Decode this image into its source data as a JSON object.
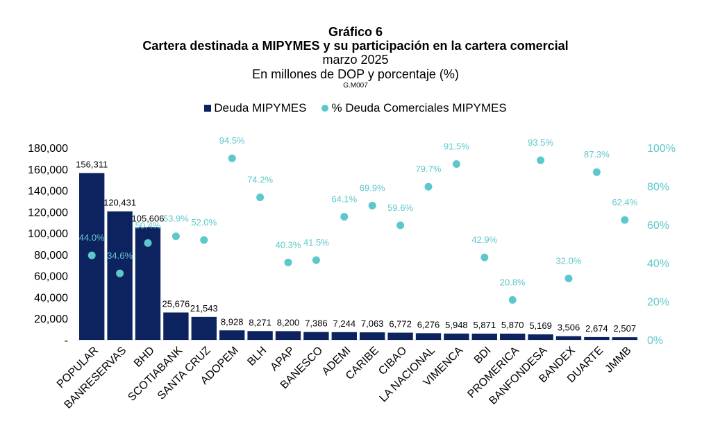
{
  "chart_data": {
    "type": "bar",
    "title": "Gráfico 6",
    "subtitle": "Cartera destinada a MIPYMES y su participación en la cartera comercial",
    "date": "marzo 2025",
    "units": "En millones de DOP y porcentaje (%)",
    "code": "G.M007",
    "categories": [
      "POPULAR",
      "BANRESERVAS",
      "BHD",
      "SCOTIABANK",
      "SANTA CRUZ",
      "ADOPEM",
      "BLH",
      "APAP",
      "BANESCO",
      "ADEMI",
      "CARIBE",
      "CIBAO",
      "LA NACIONAL",
      "VIMENCA",
      "BDI",
      "PROMERICA",
      "BANFONDESA",
      "BANDEX",
      "DUARTE",
      "JMMB"
    ],
    "series": [
      {
        "name": "Deuda MIPYMES",
        "axis": "left",
        "color": "#0d2360",
        "values": [
          156311,
          120431,
          105606,
          25676,
          21543,
          8928,
          8271,
          8200,
          7386,
          7244,
          7063,
          6772,
          6276,
          5948,
          5871,
          5870,
          5169,
          3506,
          2674,
          2507
        ],
        "labels": [
          "156,311",
          "120,431",
          "105,606",
          "25,676",
          "21,543",
          "8,928",
          "8,271",
          "8,200",
          "7,386",
          "7,244",
          "7,063",
          "6,772",
          "6,276",
          "5,948",
          "5,871",
          "5,870",
          "5,169",
          "3,506",
          "2,674",
          "2,507"
        ]
      },
      {
        "name": "% Deuda Comerciales MIPYMES",
        "axis": "right",
        "type": "scatter",
        "color": "#5dc8cb",
        "values": [
          44.0,
          34.6,
          50.4,
          53.9,
          52.0,
          94.5,
          74.2,
          40.3,
          41.5,
          64.1,
          69.9,
          59.6,
          79.7,
          91.5,
          42.9,
          20.8,
          93.5,
          32.0,
          87.3,
          62.4
        ],
        "labels": [
          "44.0%",
          "34.6%",
          "50.4%",
          "53.9%",
          "52.0%",
          "94.5%",
          "74.2%",
          "40.3%",
          "41.5%",
          "64.1%",
          "69.9%",
          "59.6%",
          "79.7%",
          "91.5%",
          "42.9%",
          "20.8%",
          "93.5%",
          "32.0%",
          "87.3%",
          "62.4%"
        ]
      }
    ],
    "y_left": {
      "ylim": [
        0,
        180000
      ],
      "ticks": [
        "-",
        "20,000",
        "40,000",
        "60,000",
        "80,000",
        "100,000",
        "120,000",
        "140,000",
        "160,000",
        "180,000"
      ]
    },
    "y_right": {
      "ylim": [
        0,
        100
      ],
      "ticks": [
        "0%",
        "20%",
        "40%",
        "60%",
        "80%",
        "100%"
      ]
    },
    "grid": false,
    "legend_position": "top"
  }
}
